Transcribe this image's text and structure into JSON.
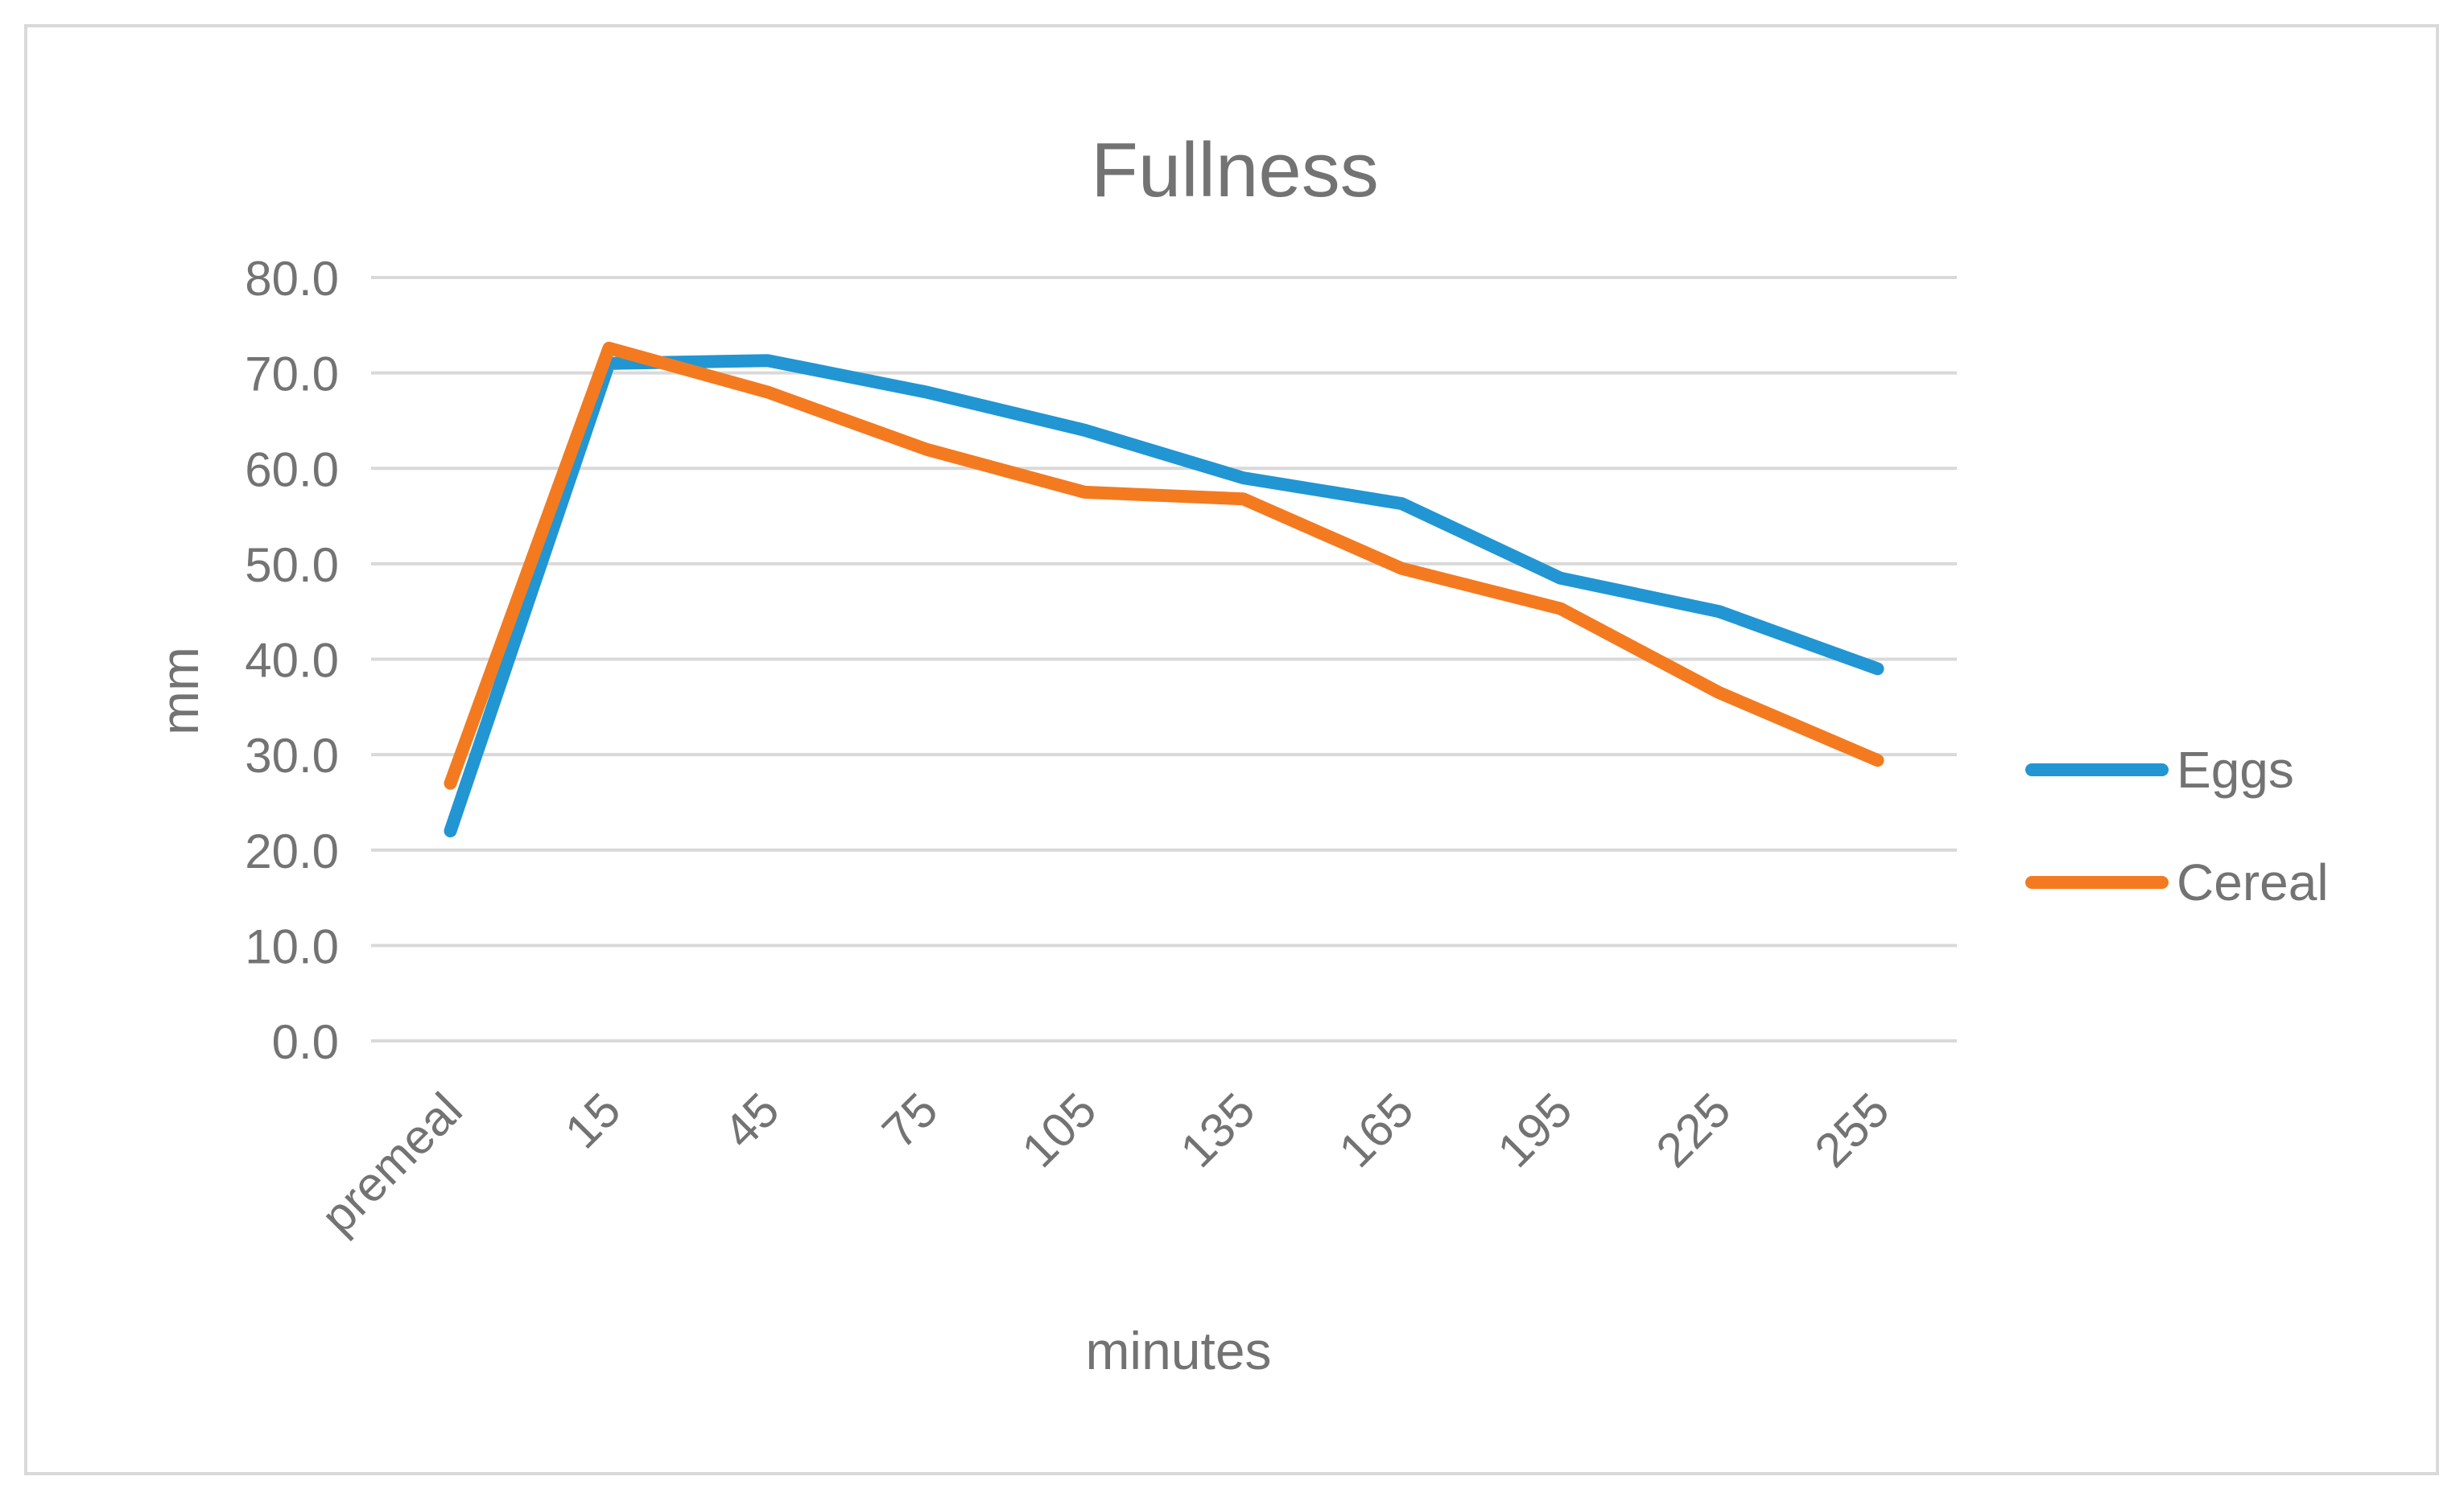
{
  "chart_data": {
    "type": "line",
    "title": "Fullness",
    "xlabel": "minutes",
    "ylabel": "mm",
    "categories": [
      "premeal",
      "15",
      "45",
      "75",
      "105",
      "135",
      "165",
      "195",
      "225",
      "255"
    ],
    "ylim": [
      0,
      80
    ],
    "yticks": [
      "0.0",
      "10.0",
      "20.0",
      "30.0",
      "40.0",
      "50.0",
      "60.0",
      "70.0",
      "80.0"
    ],
    "grid": true,
    "legend_position": "right",
    "series": [
      {
        "name": "Eggs",
        "color": "#2196d3",
        "values": [
          22.0,
          71.0,
          71.3,
          68.0,
          64.0,
          59.0,
          56.3,
          48.5,
          45.0,
          39.0
        ]
      },
      {
        "name": "Cereal",
        "color": "#f47a20",
        "values": [
          27.0,
          72.6,
          68.0,
          62.0,
          57.5,
          56.8,
          49.5,
          45.3,
          36.5,
          29.4
        ]
      }
    ]
  }
}
